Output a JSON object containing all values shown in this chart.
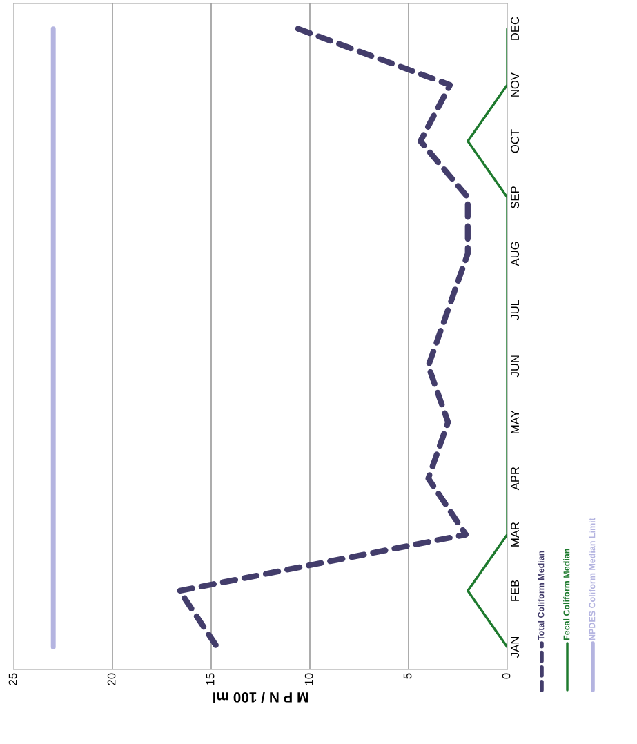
{
  "chart_data": {
    "type": "line",
    "orientation": "horizontal",
    "xlabel": "M P N / 100 ml",
    "categories": [
      "DEC",
      "NOV",
      "OCT",
      "SEP",
      "AUG",
      "JUL",
      "JUN",
      "MAY",
      "APR",
      "MAR",
      "FEB",
      "JAN"
    ],
    "series": [
      {
        "name": "Total Coliform Median",
        "color": "#433d6b",
        "line_style": "dashed",
        "values": [
          10.6,
          2.9,
          4.4,
          2.0,
          2.0,
          3.0,
          4.0,
          3.0,
          4.0,
          2.1,
          16.6,
          14.7
        ]
      },
      {
        "name": "Fecal Coliform Median",
        "color": "#1e7a2e",
        "line_style": "solid",
        "values": [
          0,
          0,
          2,
          0,
          0,
          0,
          0,
          0,
          0,
          0,
          2,
          0
        ]
      },
      {
        "name": "NPDES Coliform Median Limit",
        "color": "#b4b4e0",
        "line_style": "solid",
        "values": [
          23,
          23,
          23,
          23,
          23,
          23,
          23,
          23,
          23,
          23,
          23,
          23
        ]
      }
    ],
    "xlim": [
      25,
      0
    ],
    "xticks": [
      0,
      5,
      10,
      15,
      20,
      25
    ],
    "grid": "x",
    "legend": "right"
  }
}
